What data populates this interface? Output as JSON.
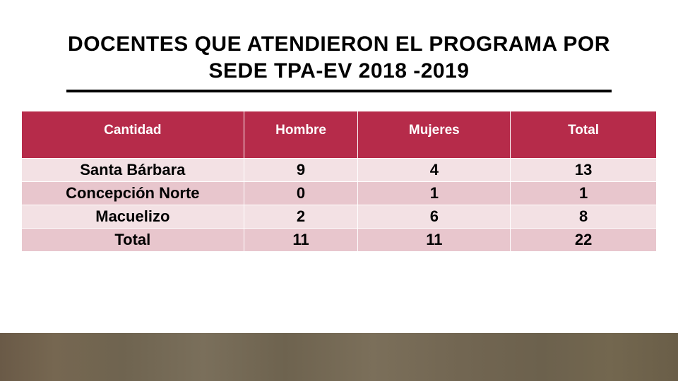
{
  "title_line1": "DOCENTES QUE ATENDIERON EL  PROGRAMA POR",
  "title_line2": "SEDE TPA-EV 2018 -2019",
  "colors": {
    "header_bg": "#b62b4a",
    "row_odd_bg": "#f3e1e4",
    "row_even_bg": "#e8c6cd",
    "title_underline": "#000000",
    "text": "#000000",
    "header_text": "#ffffff"
  },
  "table": {
    "columns": [
      "Cantidad",
      "Hombre",
      "Mujeres",
      "Total"
    ],
    "rows": [
      [
        "Santa Bárbara",
        "9",
        "4",
        "13"
      ],
      [
        "Concepción Norte",
        "0",
        "1",
        "1"
      ],
      [
        "Macuelizo",
        "2",
        "6",
        "8"
      ],
      [
        "Total",
        "11",
        "11",
        "22"
      ]
    ],
    "column_widths_pct": [
      35,
      18,
      24,
      23
    ]
  }
}
